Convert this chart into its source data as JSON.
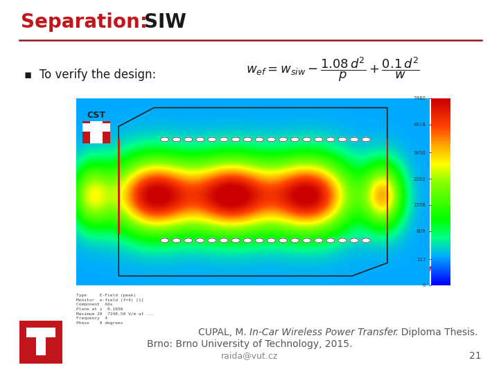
{
  "title_red": "Separation: ",
  "title_black": "SIW",
  "title_fontsize": 20,
  "title_color_red": "#C0161C",
  "title_color_black": "#1a1a1a",
  "separator_color": "#8B1A1A",
  "bullet_text": "To verify the design:",
  "bullet_fontsize": 12,
  "citation_line1_normal": "CUPAL, M. ",
  "citation_line1_italic": "In-Car Wireless Power Transfer",
  "citation_line1_end": ". Diploma Thesis.",
  "citation_line2": "Brno: Brno University of Technology, 2015.",
  "citation_line3": "raida@vut.cz",
  "page_number": "21",
  "citation_fontsize": 10,
  "background_color": "#ffffff",
  "footer_bg_color": "#C0161C",
  "img_bg_color": "#c8c8c8"
}
